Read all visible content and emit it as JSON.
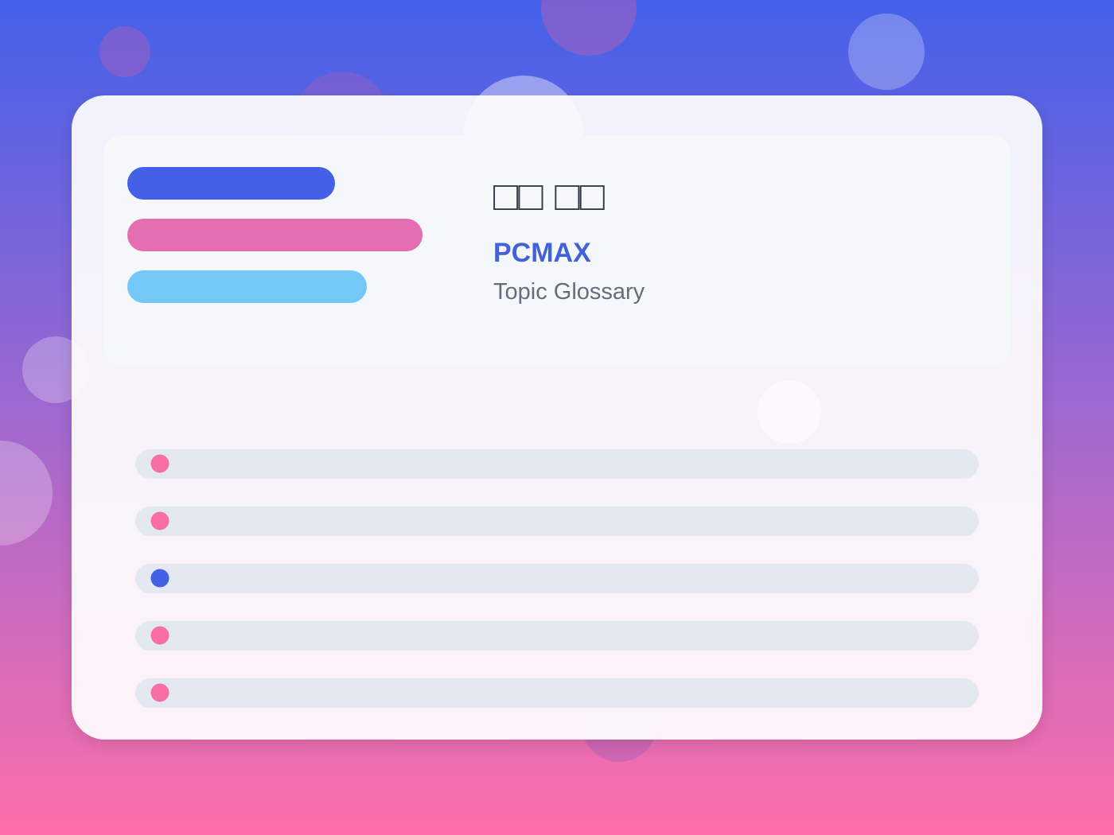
{
  "header": {
    "title": "□□ □□",
    "brand": "PCMAX",
    "subtitle": "Topic Glossary"
  }
}
